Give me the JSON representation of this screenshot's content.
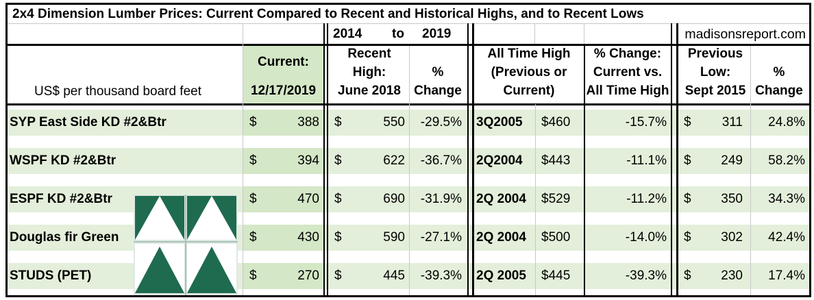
{
  "title": "2x4 Dimension Lumber Prices: Current Compared to Recent and Historical Highs, and to Recent Lows",
  "range": {
    "from": "2014",
    "to_word": "to",
    "to": "2019"
  },
  "source": "madisonsreport.com",
  "headers": {
    "unit": "US$ per thousand board feet",
    "current_l1": "Current:",
    "current_l2": "12/17/2019",
    "recent_high_l1": "Recent",
    "recent_high_l2": "High:",
    "recent_high_l3": "June 2018",
    "pct_change": "%",
    "pct_change_l2": "Change",
    "ath_l1": "All Time High",
    "ath_l2": "(Previous or",
    "ath_l3": "Current)",
    "pct_cur_ath_l1": "% Change:",
    "pct_cur_ath_l2": "Current vs.",
    "pct_cur_ath_l3": "All Time High",
    "prev_low_l1": "Previous",
    "prev_low_l2": "Low:",
    "prev_low_l3": "Sept 2015",
    "pct2_l1": "%",
    "pct2_l2": "Change"
  },
  "currency_symbol": "$",
  "rows": [
    {
      "name": "SYP East Side KD #2&Btr",
      "current": "388",
      "recent_high": "550",
      "pct_change": "-29.5%",
      "ath_date": "3Q2005",
      "ath_price": "$460",
      "pct_vs_ath": "-15.7%",
      "prev_low": "311",
      "pct_from_low": "24.8%"
    },
    {
      "name": "WSPF KD #2&Btr",
      "current": "394",
      "recent_high": "622",
      "pct_change": "-36.7%",
      "ath_date": "2Q2004",
      "ath_price": "$443",
      "pct_vs_ath": "-11.1%",
      "prev_low": "249",
      "pct_from_low": "58.2%"
    },
    {
      "name": "ESPF KD #2&Btr",
      "current": "470",
      "recent_high": "690",
      "pct_change": "-31.9%",
      "ath_date": "2Q 2004",
      "ath_price": "$529",
      "pct_vs_ath": "-11.2%",
      "prev_low": "350",
      "pct_from_low": "34.3%"
    },
    {
      "name": "Douglas fir Green",
      "current": "430",
      "recent_high": "590",
      "pct_change": "-27.1%",
      "ath_date": "2Q 2004",
      "ath_price": "$500",
      "pct_vs_ath": "-14.0%",
      "prev_low": "302",
      "pct_from_low": "42.4%"
    },
    {
      "name": "STUDS (PET)",
      "current": "270",
      "recent_high": "445",
      "pct_change": "-39.3%",
      "ath_date": "2Q 2005",
      "ath_price": "$445",
      "pct_vs_ath": "-39.3%",
      "prev_low": "230",
      "pct_from_low": "17.4%"
    }
  ],
  "logo": {
    "icon": "triangles-logo-icon",
    "colors": {
      "green": "#1f6b4f",
      "light": "#e9f2ee"
    }
  },
  "colors": {
    "row_shade": "#e3efda",
    "current_col": "#d4e7c6",
    "border": "#000000"
  }
}
